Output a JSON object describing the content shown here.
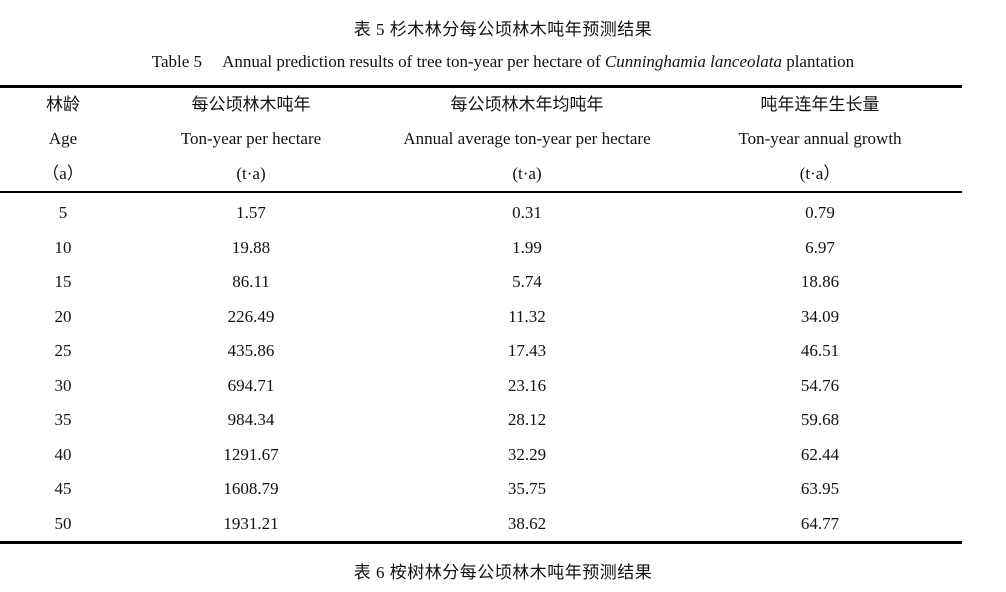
{
  "caption": {
    "cn": "表 5  杉木林分每公顷林木吨年预测结果",
    "en_label": "Table 5",
    "en_text_before": "Annual prediction results of tree ton-year per hectare of ",
    "en_species": "Cunninghamia lanceolata",
    "en_text_after": " plantation"
  },
  "table": {
    "columns": [
      {
        "cn": "林龄",
        "en": "Age",
        "unit": "（a）"
      },
      {
        "cn": "每公顷林木吨年",
        "en": "Ton-year per hectare",
        "unit": "(t·a)"
      },
      {
        "cn": "每公顷林木年均吨年",
        "en": "Annual average ton-year per hectare",
        "unit": "(t·a)"
      },
      {
        "cn": "吨年连年生长量",
        "en": "Ton-year annual growth",
        "unit": "(t·a）"
      }
    ],
    "rows": [
      [
        "5",
        "1.57",
        "0.31",
        "0.79"
      ],
      [
        "10",
        "19.88",
        "1.99",
        "6.97"
      ],
      [
        "15",
        "86.11",
        "5.74",
        "18.86"
      ],
      [
        "20",
        "226.49",
        "11.32",
        "34.09"
      ],
      [
        "25",
        "435.86",
        "17.43",
        "46.51"
      ],
      [
        "30",
        "694.71",
        "23.16",
        "54.76"
      ],
      [
        "35",
        "984.34",
        "28.12",
        "59.68"
      ],
      [
        "40",
        "1291.67",
        "32.29",
        "62.44"
      ],
      [
        "45",
        "1608.79",
        "35.75",
        "63.95"
      ],
      [
        "50",
        "1931.21",
        "38.62",
        "64.77"
      ]
    ]
  },
  "next_caption": {
    "cn": "表 6  桉树林分每公顷林木吨年预测结果"
  }
}
